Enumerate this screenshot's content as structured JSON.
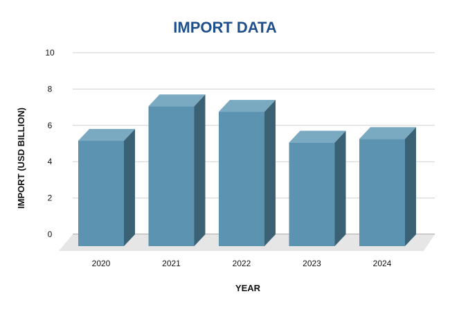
{
  "chart_data": {
    "type": "bar",
    "title": "IMPORT DATA",
    "xlabel": "YEAR",
    "ylabel": "IMPORT (USD BILLION)",
    "categories": [
      "2020",
      "2021",
      "2022",
      "2023",
      "2024"
    ],
    "values": [
      5.8,
      7.7,
      7.4,
      5.7,
      5.9
    ],
    "ylim": [
      0,
      10
    ],
    "yticks": [
      "0",
      "2",
      "4",
      "6",
      "8",
      "10"
    ],
    "grid": true,
    "legend": "none",
    "style": "3d-column",
    "colors": {
      "bar_front": "#5b93b0",
      "bar_top": "#7aaac1",
      "bar_side": "#3b6175",
      "floor": "#e6e6e6",
      "grid": "#d0d0d0",
      "title": "#1f4e8c"
    }
  }
}
